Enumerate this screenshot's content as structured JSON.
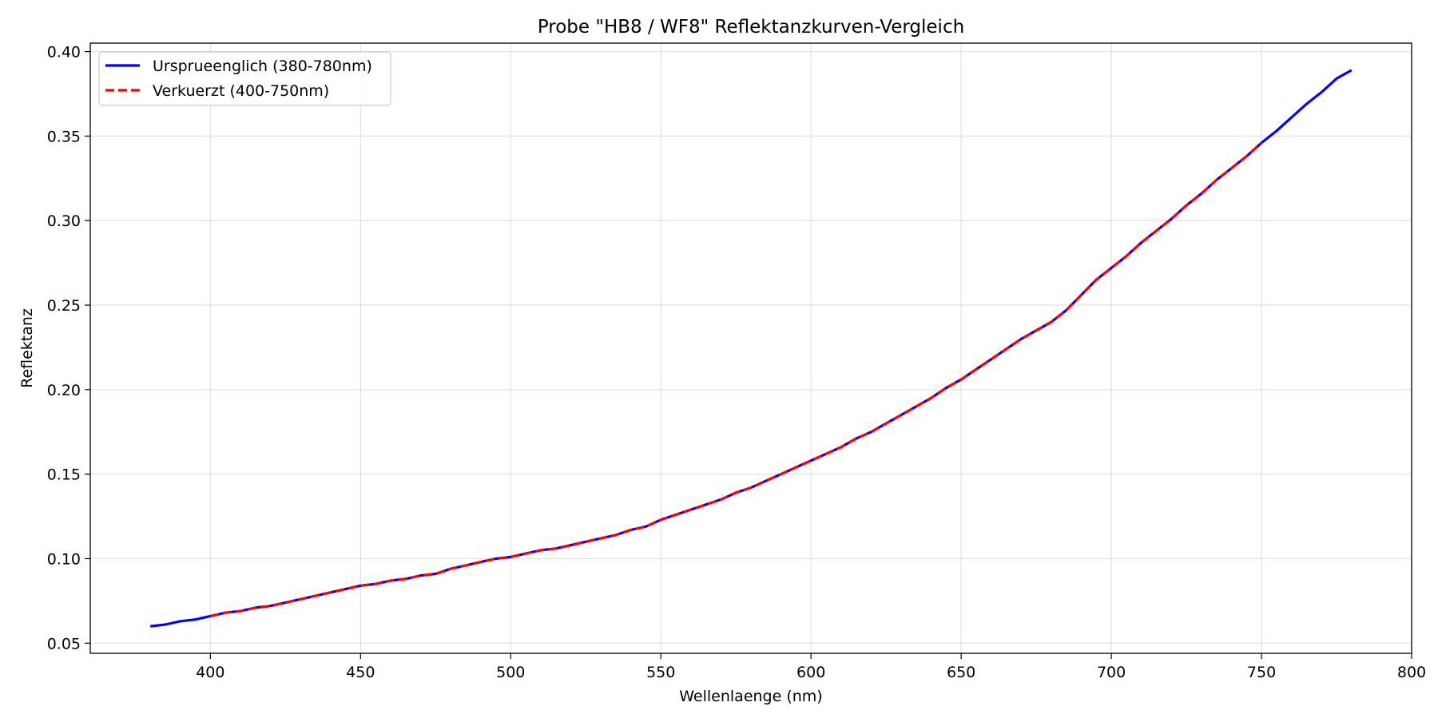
{
  "chart_data": {
    "type": "line",
    "title": "Probe \"HB8 / WF8\" Reflektanzkurven-Vergleich",
    "xlabel": "Wellenlaenge (nm)",
    "ylabel": "Reflektanz",
    "xlim": [
      360,
      800
    ],
    "ylim": [
      0.044,
      0.405
    ],
    "xticks": [
      400,
      450,
      500,
      550,
      600,
      650,
      700,
      750,
      800
    ],
    "yticks": [
      0.05,
      0.1,
      0.15,
      0.2,
      0.25,
      0.3,
      0.35,
      0.4
    ],
    "ytick_decimals": 2,
    "grid": true,
    "legend_position": "top-left",
    "series": [
      {
        "name": "Ursprueenglich (380-780nm)",
        "style": "solid",
        "color": "#0000ff",
        "x": [
          380,
          385,
          390,
          395,
          400,
          405,
          410,
          415,
          420,
          425,
          430,
          435,
          440,
          445,
          450,
          455,
          460,
          465,
          470,
          475,
          480,
          485,
          490,
          495,
          500,
          505,
          510,
          515,
          520,
          525,
          530,
          535,
          540,
          545,
          550,
          555,
          560,
          565,
          570,
          575,
          580,
          585,
          590,
          595,
          600,
          605,
          610,
          615,
          620,
          625,
          630,
          635,
          640,
          645,
          650,
          655,
          660,
          665,
          670,
          675,
          680,
          685,
          690,
          695,
          700,
          705,
          710,
          715,
          720,
          725,
          730,
          735,
          740,
          745,
          750,
          755,
          760,
          765,
          770,
          775,
          780
        ],
        "y": [
          0.06,
          0.061,
          0.063,
          0.064,
          0.066,
          0.068,
          0.069,
          0.071,
          0.072,
          0.074,
          0.076,
          0.078,
          0.08,
          0.082,
          0.084,
          0.085,
          0.087,
          0.088,
          0.09,
          0.091,
          0.094,
          0.096,
          0.098,
          0.1,
          0.101,
          0.103,
          0.105,
          0.106,
          0.108,
          0.11,
          0.112,
          0.114,
          0.117,
          0.119,
          0.123,
          0.126,
          0.129,
          0.132,
          0.135,
          0.139,
          0.142,
          0.146,
          0.15,
          0.154,
          0.158,
          0.162,
          0.166,
          0.171,
          0.175,
          0.18,
          0.185,
          0.19,
          0.195,
          0.201,
          0.206,
          0.212,
          0.218,
          0.224,
          0.23,
          0.235,
          0.24,
          0.247,
          0.256,
          0.265,
          0.272,
          0.279,
          0.287,
          0.294,
          0.301,
          0.309,
          0.316,
          0.324,
          0.331,
          0.338,
          0.346,
          0.353,
          0.361,
          0.369,
          0.376,
          0.384,
          0.389
        ]
      },
      {
        "name": "Verkuerzt (400-750nm)",
        "style": "dashed",
        "color": "#ff0000",
        "x": [
          400,
          405,
          410,
          415,
          420,
          425,
          430,
          435,
          440,
          445,
          450,
          455,
          460,
          465,
          470,
          475,
          480,
          485,
          490,
          495,
          500,
          505,
          510,
          515,
          520,
          525,
          530,
          535,
          540,
          545,
          550,
          555,
          560,
          565,
          570,
          575,
          580,
          585,
          590,
          595,
          600,
          605,
          610,
          615,
          620,
          625,
          630,
          635,
          640,
          645,
          650,
          655,
          660,
          665,
          670,
          675,
          680,
          685,
          690,
          695,
          700,
          705,
          710,
          715,
          720,
          725,
          730,
          735,
          740,
          745,
          750
        ],
        "y": [
          0.066,
          0.068,
          0.069,
          0.071,
          0.072,
          0.074,
          0.076,
          0.078,
          0.08,
          0.082,
          0.084,
          0.085,
          0.087,
          0.088,
          0.09,
          0.091,
          0.094,
          0.096,
          0.098,
          0.1,
          0.101,
          0.103,
          0.105,
          0.106,
          0.108,
          0.11,
          0.112,
          0.114,
          0.117,
          0.119,
          0.123,
          0.126,
          0.129,
          0.132,
          0.135,
          0.139,
          0.142,
          0.146,
          0.15,
          0.154,
          0.158,
          0.162,
          0.166,
          0.171,
          0.175,
          0.18,
          0.185,
          0.19,
          0.195,
          0.201,
          0.206,
          0.212,
          0.218,
          0.224,
          0.23,
          0.235,
          0.24,
          0.247,
          0.256,
          0.265,
          0.272,
          0.279,
          0.287,
          0.294,
          0.301,
          0.309,
          0.316,
          0.324,
          0.331,
          0.338,
          0.346
        ]
      }
    ]
  }
}
